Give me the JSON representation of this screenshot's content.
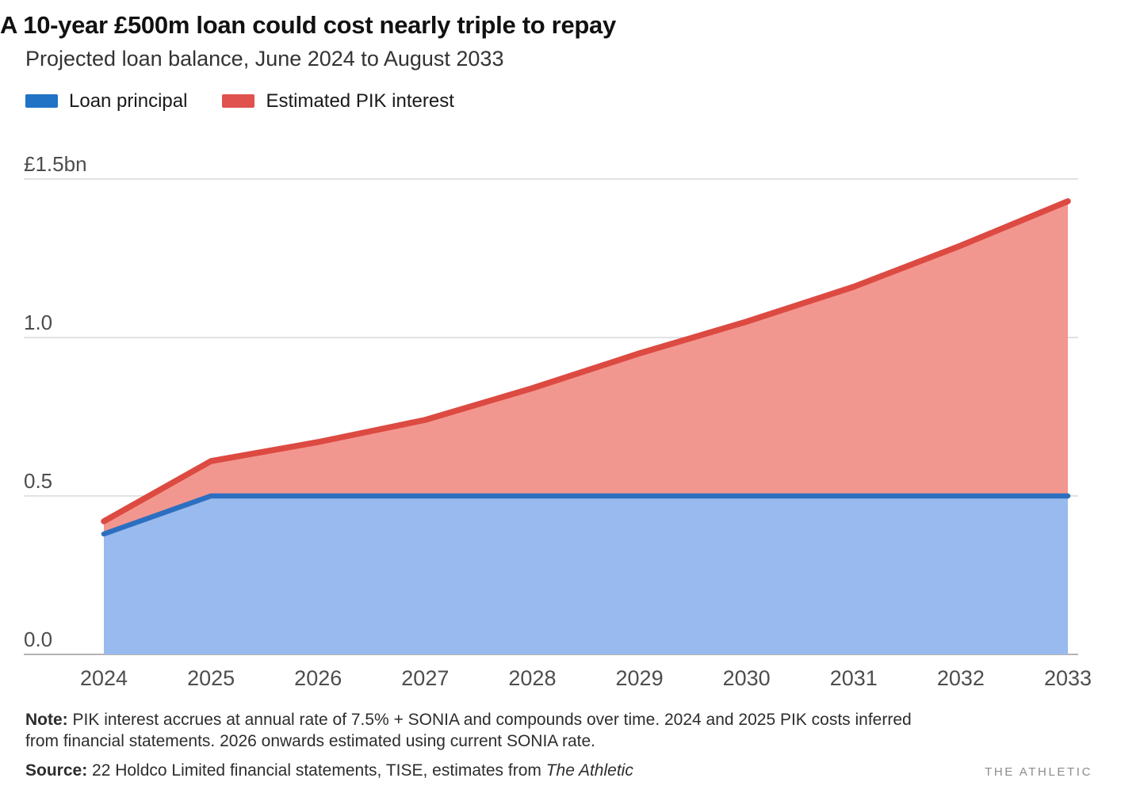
{
  "header": {
    "title": "A 10-year £500m loan could cost nearly triple to repay",
    "subtitle": "Projected loan balance, June 2024 to August 2033"
  },
  "legend": {
    "items": [
      {
        "label": "Loan principal"
      },
      {
        "label": "Estimated PIK interest"
      }
    ]
  },
  "footer": {
    "note_label": "Note:",
    "note_text": " PIK interest accrues at annual rate of 7.5% + SONIA and compounds over time. 2024 and 2025 PIK costs inferred from financial statements. 2026 onwards estimated using current SONIA rate.",
    "source_label": "Source:",
    "source_text": " 22 Holdco Limited financial statements, TISE, estimates from ",
    "source_publication": "The Athletic",
    "wordmark": "THE ATHLETIC"
  },
  "chart_data": {
    "type": "area",
    "stacked": true,
    "title": "A 10-year £500m loan could cost nearly triple to repay",
    "subtitle": "Projected loan balance, June 2024 to August 2033",
    "unit": "£bn",
    "categories": [
      "2024",
      "2025",
      "2026",
      "2027",
      "2028",
      "2029",
      "2030",
      "2031",
      "2032",
      "2033"
    ],
    "series": [
      {
        "name": "Loan principal",
        "values": [
          0.38,
          0.5,
          0.5,
          0.5,
          0.5,
          0.5,
          0.5,
          0.5,
          0.5,
          0.5
        ],
        "line_color": "#2c6fc0",
        "fill_color": "#99baee",
        "legend_color": "#2173c6"
      },
      {
        "name": "Estimated PIK interest",
        "values": [
          0.04,
          0.11,
          0.17,
          0.24,
          0.34,
          0.45,
          0.55,
          0.66,
          0.79,
          0.93
        ],
        "line_color": "#dc4a42",
        "fill_color": "#f2978f",
        "legend_color": "#e0524d"
      }
    ],
    "stacked_totals": [
      0.42,
      0.61,
      0.67,
      0.74,
      0.84,
      0.95,
      1.05,
      1.16,
      1.29,
      1.43
    ],
    "ylim": [
      0,
      1.5
    ],
    "yticks": [
      {
        "value": 0,
        "label": "0.0"
      },
      {
        "value": 0.5,
        "label": "0.5"
      },
      {
        "value": 1.0,
        "label": "1.0"
      },
      {
        "value": 1.5,
        "label": "£1.5bn"
      }
    ],
    "grid": "horizontal",
    "legend_position": "top-left",
    "axis_colors": {
      "gridline": "#d8d8d8",
      "baseline": "#b3b3b3",
      "tick_text": "#4d4d4d"
    }
  }
}
